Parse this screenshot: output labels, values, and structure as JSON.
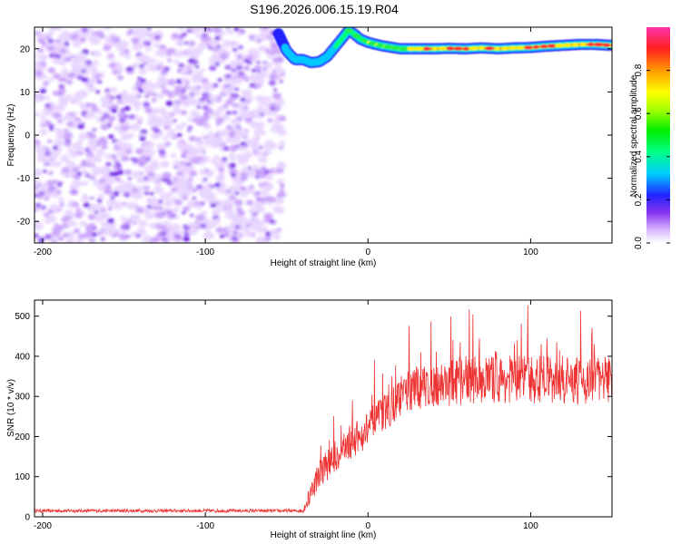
{
  "figure": {
    "title": "S196.2026.006.15.19.R04"
  },
  "colors": {
    "snr_line": "#ee3333",
    "noise_palette": [
      "#e9d6ff",
      "#cca6fb",
      "#9f66f4",
      "#7422e8"
    ],
    "ridge_palette": [
      "#2222ff",
      "#00c8ff",
      "#00ff80",
      "#ffff00",
      "#ff2020"
    ]
  },
  "chart_data": [
    {
      "type": "heatmap",
      "id": "spectrogram",
      "xlabel": "Height of straight line (km)",
      "ylabel": "Frequency (Hz)",
      "xlim": [
        -205,
        150
      ],
      "ylim": [
        -25,
        25
      ],
      "xticks": [
        -200,
        -100,
        0,
        100
      ],
      "yticks": [
        -20,
        -10,
        0,
        10,
        20
      ],
      "noise_region": {
        "x": [
          -205,
          -52
        ],
        "y": [
          -25,
          25
        ],
        "amplitude_range": [
          0.05,
          0.55
        ]
      },
      "ridge": {
        "x": [
          -55,
          -50,
          -45,
          -40,
          -35,
          -30,
          -25,
          -20,
          -15,
          -12,
          -8,
          -5,
          0,
          5,
          10,
          15,
          20,
          25,
          30,
          40,
          50,
          60,
          70,
          80,
          90,
          100,
          110,
          120,
          130,
          140,
          150
        ],
        "y": [
          23.5,
          19.5,
          17.5,
          17.5,
          16.8,
          17,
          18.2,
          20.5,
          22.8,
          24.3,
          23.3,
          22.3,
          21.5,
          21,
          20.6,
          20.3,
          20,
          20,
          20,
          20,
          20.1,
          20,
          20.2,
          20,
          20.2,
          20.3,
          20.6,
          20.8,
          21,
          21,
          20.8
        ],
        "amplitude": [
          0.15,
          0.35,
          0.35,
          0.35,
          0.35,
          0.4,
          0.4,
          0.45,
          0.5,
          0.55,
          0.6,
          0.65,
          0.7,
          0.7,
          0.75,
          0.75,
          0.8,
          0.85,
          0.85,
          0.9,
          0.9,
          0.9,
          0.9,
          0.92,
          0.92,
          0.95,
          0.95,
          0.98,
          0.98,
          0.98,
          0.95
        ]
      },
      "colorbar": {
        "label": "Normalized spectral amplitude",
        "range": [
          0,
          1
        ],
        "ticks": [
          0.0,
          0.2,
          0.4,
          0.6,
          0.8
        ]
      }
    },
    {
      "type": "line",
      "id": "snr",
      "xlabel": "Height of straight line (km)",
      "ylabel": "SNR (10 * v/v)",
      "xlim": [
        -205,
        150
      ],
      "ylim": [
        0,
        540
      ],
      "xticks": [
        -200,
        -100,
        0,
        100
      ],
      "yticks": [
        0,
        100,
        200,
        300,
        400,
        500
      ],
      "series": [
        {
          "x": [
            -205,
            -180,
            -150,
            -120,
            -90,
            -60,
            -45,
            -40,
            -35,
            -30,
            -25,
            -20,
            -15,
            -10,
            -5,
            0,
            5,
            10,
            15,
            20,
            25,
            30,
            40,
            50,
            60,
            70,
            80,
            90,
            100,
            110,
            120,
            130,
            140,
            150
          ],
          "baseline": [
            15,
            15,
            15,
            15,
            15,
            15,
            15,
            15,
            60,
            110,
            130,
            150,
            170,
            190,
            200,
            220,
            240,
            260,
            280,
            300,
            310,
            320,
            330,
            335,
            340,
            345,
            340,
            345,
            340,
            345,
            340,
            335,
            345,
            340
          ],
          "spread": [
            8,
            8,
            8,
            8,
            8,
            8,
            8,
            10,
            60,
            70,
            80,
            80,
            80,
            90,
            90,
            90,
            90,
            90,
            100,
            100,
            100,
            110,
            110,
            120,
            120,
            120,
            120,
            120,
            120,
            125,
            120,
            120,
            120,
            120
          ]
        }
      ]
    }
  ]
}
